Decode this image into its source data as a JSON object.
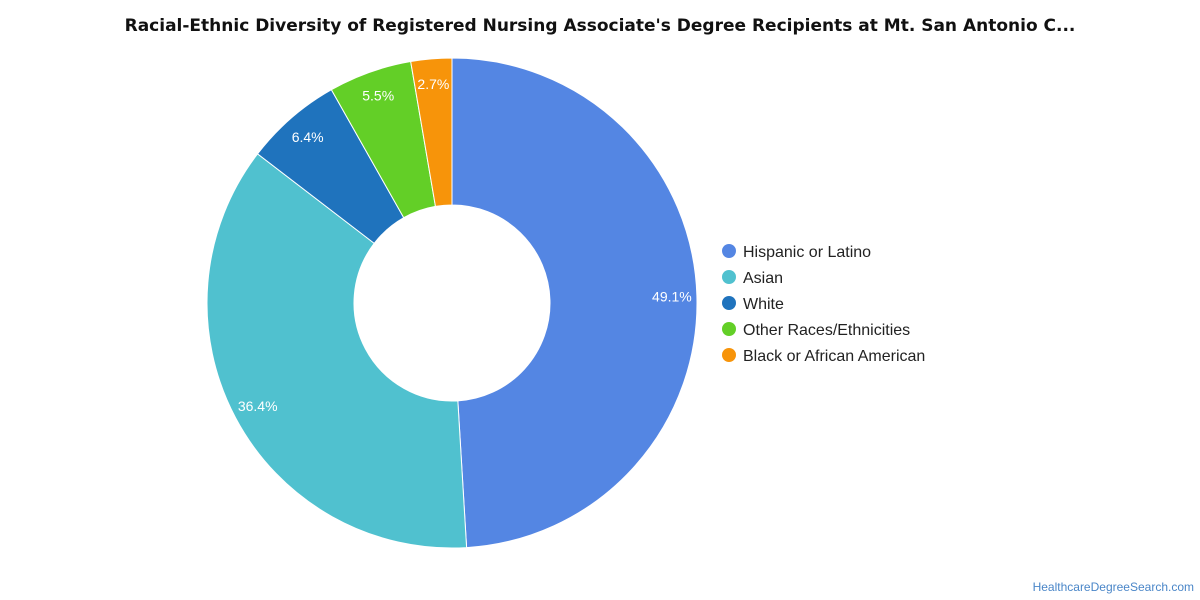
{
  "chart_data": {
    "type": "pie",
    "style": "donut",
    "title": "Racial-Ethnic Diversity of Registered Nursing Associate's Degree Recipients at Mt. San Antonio C...",
    "legend_position": "right",
    "slices": [
      {
        "label": "Hispanic or Latino",
        "value": 49.1,
        "display": "49.1%",
        "color": "#5486e3"
      },
      {
        "label": "Asian",
        "value": 36.4,
        "display": "36.4%",
        "color": "#50c1cf"
      },
      {
        "label": "White",
        "value": 6.4,
        "display": "6.4%",
        "color": "#1f73bd"
      },
      {
        "label": "Other Races/Ethnicities",
        "value": 5.5,
        "display": "5.5%",
        "color": "#63cf27"
      },
      {
        "label": "Black or African American",
        "value": 2.7,
        "display": "2.7%",
        "color": "#f7940a"
      }
    ]
  },
  "footer": {
    "source": "HealthcareDegreeSearch.com"
  }
}
